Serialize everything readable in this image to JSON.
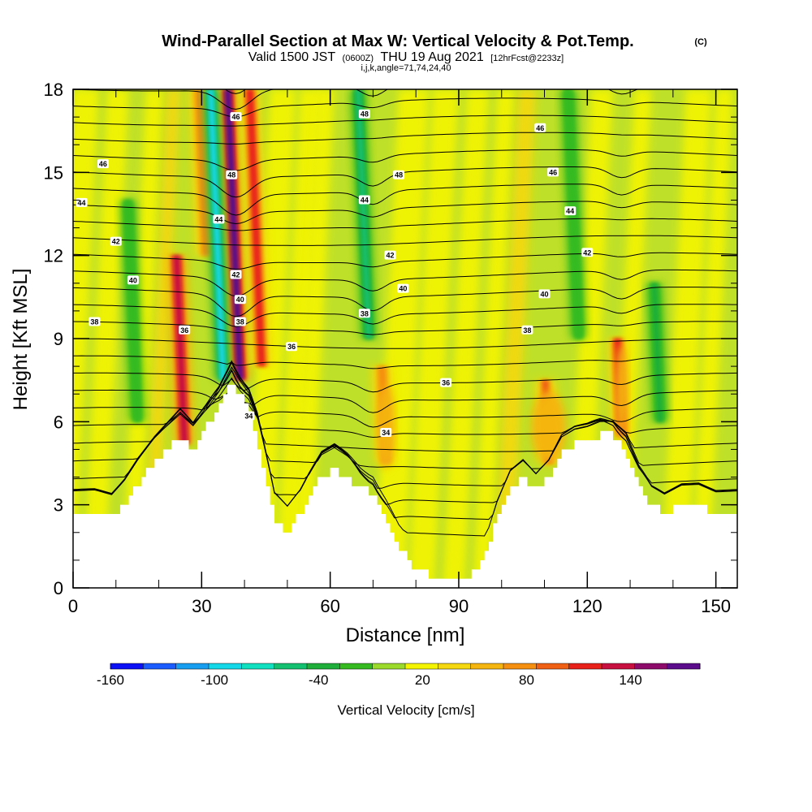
{
  "chart_data": {
    "type": "heatmap",
    "title": "Wind-Parallel Section at Max W: Vertical Velocity & Pot.Temp.",
    "copyright": "(C)",
    "subtitle_valid": "Valid 1500 JST",
    "subtitle_z": "(0600Z)",
    "subtitle_date": "THU 19 Aug 2021",
    "subtitle_fcst": "[12hrFcst@2233z]",
    "subtitle_grid": "i,j,k,angle=71,74,24,40",
    "xlabel": "Distance [nm]",
    "ylabel": "Height [Kft MSL]",
    "xlim": [
      0,
      155
    ],
    "ylim": [
      0,
      18
    ],
    "x_ticks": [
      0,
      30,
      60,
      90,
      120,
      150
    ],
    "x_tick_labels": [
      "0",
      "30",
      "60",
      "90",
      "120",
      "150"
    ],
    "y_ticks": [
      0,
      3,
      6,
      9,
      12,
      15,
      18
    ],
    "y_tick_labels": [
      "0",
      "3",
      "6",
      "9",
      "12",
      "15",
      "18"
    ],
    "terrain_kft": [
      [
        0,
        2.7
      ],
      [
        5,
        2.7
      ],
      [
        9,
        2.5
      ],
      [
        12,
        3.0
      ],
      [
        15,
        3.7
      ],
      [
        19,
        4.5
      ],
      [
        22,
        5.0
      ],
      [
        25,
        5.5
      ],
      [
        28,
        5.0
      ],
      [
        31,
        5.7
      ],
      [
        34,
        6.5
      ],
      [
        37,
        7.6
      ],
      [
        39,
        7.0
      ],
      [
        41,
        6.5
      ],
      [
        43,
        5.5
      ],
      [
        45,
        4.0
      ],
      [
        47,
        2.5
      ],
      [
        50,
        2.0
      ],
      [
        53,
        2.6
      ],
      [
        55,
        3.2
      ],
      [
        58,
        4.0
      ],
      [
        61,
        4.3
      ],
      [
        64,
        4.0
      ],
      [
        67,
        3.6
      ],
      [
        70,
        3.4
      ],
      [
        73,
        2.5
      ],
      [
        76,
        1.5
      ],
      [
        80,
        0.7
      ],
      [
        84,
        0.4
      ],
      [
        88,
        0.4
      ],
      [
        92,
        0.4
      ],
      [
        96,
        1.0
      ],
      [
        99,
        2.5
      ],
      [
        102,
        3.6
      ],
      [
        105,
        4.0
      ],
      [
        108,
        3.5
      ],
      [
        111,
        4.0
      ],
      [
        114,
        4.9
      ],
      [
        117,
        5.2
      ],
      [
        120,
        5.3
      ],
      [
        123,
        5.5
      ],
      [
        126,
        5.5
      ],
      [
        129,
        5.0
      ],
      [
        132,
        3.8
      ],
      [
        135,
        3.0
      ],
      [
        138,
        2.7
      ],
      [
        142,
        3.0
      ],
      [
        146,
        3.0
      ],
      [
        150,
        2.7
      ],
      [
        155,
        2.7
      ]
    ],
    "colorbar": {
      "label": "Vertical Velocity [cm/s]",
      "min": -170,
      "max": 170,
      "step": 20,
      "tick_values": [
        -160,
        -100,
        -40,
        20,
        80,
        140
      ],
      "tick_labels": [
        "-160",
        "-100",
        "-40",
        "20",
        "80",
        "140"
      ],
      "colors": [
        "#0b10f5",
        "#1a5cff",
        "#189ef0",
        "#12d8e8",
        "#10e0c0",
        "#13c070",
        "#1fae3a",
        "#35bb20",
        "#9bd92a",
        "#f4f400",
        "#f5d810",
        "#f5b510",
        "#f58f10",
        "#f06014",
        "#e8211a",
        "#c81040",
        "#8e0a6a",
        "#5a0c8a"
      ]
    },
    "series": [
      {
        "name": "Vertical Velocity",
        "updrafts_cm_s": [
          {
            "x": 26,
            "z0": 5.2,
            "z1": 12,
            "w": 140
          },
          {
            "x": 39,
            "z0": 7.5,
            "z1": 18,
            "w": 170
          },
          {
            "x": 44,
            "z0": 8,
            "z1": 18,
            "w": 110
          },
          {
            "x": 31,
            "z0": 12,
            "z1": 18,
            "w": 80
          },
          {
            "x": 73,
            "z0": 4.5,
            "z1": 8,
            "w": 80
          },
          {
            "x": 111,
            "z0": 4.5,
            "z1": 7.5,
            "w": 90
          },
          {
            "x": 128,
            "z0": 5.5,
            "z1": 9,
            "w": 110
          }
        ],
        "downdrafts_cm_s": [
          {
            "x": 35,
            "z0": 7.5,
            "z1": 18,
            "w": -100
          },
          {
            "x": 69,
            "z0": 9,
            "z1": 18,
            "w": -60
          },
          {
            "x": 15,
            "z0": 6,
            "z1": 14,
            "w": -30
          },
          {
            "x": 118,
            "z0": 9,
            "z1": 18,
            "w": -30
          },
          {
            "x": 137,
            "z0": 6,
            "z1": 11,
            "w": -40
          }
        ]
      },
      {
        "name": "Potential Temperature",
        "contour_labels": [
          {
            "text": "46",
            "x": 38,
            "z": 17.0
          },
          {
            "text": "48",
            "x": 68,
            "z": 17.1
          },
          {
            "text": "46",
            "x": 109,
            "z": 16.6
          },
          {
            "text": "46",
            "x": 7,
            "z": 15.3
          },
          {
            "text": "48",
            "x": 37,
            "z": 14.9
          },
          {
            "text": "48",
            "x": 76,
            "z": 14.9
          },
          {
            "text": "46",
            "x": 112,
            "z": 15.0
          },
          {
            "text": "44",
            "x": 2,
            "z": 13.9
          },
          {
            "text": "44",
            "x": 34,
            "z": 13.3
          },
          {
            "text": "44",
            "x": 68,
            "z": 14.0
          },
          {
            "text": "44",
            "x": 116,
            "z": 13.6
          },
          {
            "text": "42",
            "x": 10,
            "z": 12.5
          },
          {
            "text": "42",
            "x": 74,
            "z": 12.0
          },
          {
            "text": "42",
            "x": 120,
            "z": 12.1
          },
          {
            "text": "42",
            "x": 38,
            "z": 11.3
          },
          {
            "text": "40",
            "x": 14,
            "z": 11.1
          },
          {
            "text": "40",
            "x": 77,
            "z": 10.8
          },
          {
            "text": "40",
            "x": 110,
            "z": 10.6
          },
          {
            "text": "40",
            "x": 39,
            "z": 10.4
          },
          {
            "text": "38",
            "x": 39,
            "z": 9.6
          },
          {
            "text": "38",
            "x": 5,
            "z": 9.6
          },
          {
            "text": "38",
            "x": 68,
            "z": 9.9
          },
          {
            "text": "38",
            "x": 106,
            "z": 9.3
          },
          {
            "text": "36",
            "x": 26,
            "z": 9.3
          },
          {
            "text": "36",
            "x": 51,
            "z": 8.7
          },
          {
            "text": "36",
            "x": 87,
            "z": 7.4
          },
          {
            "text": "34",
            "x": 41,
            "z": 6.2
          },
          {
            "text": "34",
            "x": 73,
            "z": 5.6
          }
        ]
      }
    ]
  }
}
